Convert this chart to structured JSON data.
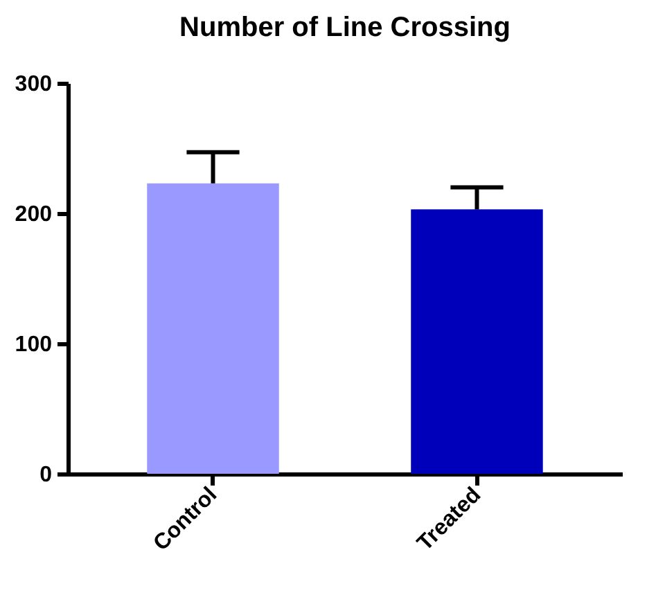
{
  "chart_data": {
    "type": "bar",
    "title": "Number of Line Crossing",
    "categories": [
      "Control",
      "Treated"
    ],
    "values": [
      223,
      203
    ],
    "colors": [
      "#9999ff",
      "#0000bb"
    ],
    "errors": [
      [
        223,
        247
      ],
      [
        203,
        220
      ]
    ],
    "ylim": [
      0,
      300
    ],
    "yticks": [
      0,
      100,
      200,
      300
    ],
    "grid": false
  }
}
